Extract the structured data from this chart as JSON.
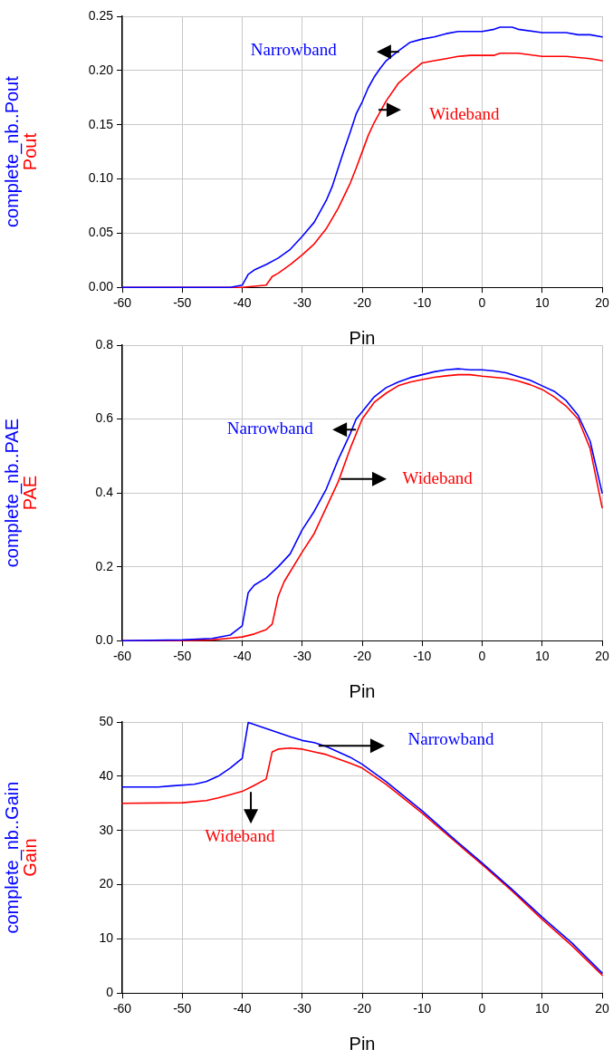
{
  "chart_data": [
    {
      "type": "line",
      "xlabel": "Pin",
      "ylabel": "complete_nb..Pout\nPout",
      "xlim": [
        -60,
        20
      ],
      "xticks": [
        -60,
        -50,
        -40,
        -30,
        -20,
        -10,
        0,
        10,
        20
      ],
      "ylim": [
        0,
        0.25
      ],
      "yticks": [
        {
          "value": 0,
          "label": "0.00"
        },
        {
          "value": 0.05,
          "label": "0.05"
        },
        {
          "value": 0.1,
          "label": "0.10"
        },
        {
          "value": 0.15,
          "label": "0.15"
        },
        {
          "value": 0.2,
          "label": "0.20"
        },
        {
          "value": 0.25,
          "label": "0.25"
        }
      ],
      "grid": true,
      "legend": false,
      "marker": "none",
      "series": [
        {
          "name": "Narrowband",
          "color": "#0000ff",
          "x": [
            -60,
            -42,
            -41,
            -40,
            -39,
            -38,
            -36,
            -34,
            -32,
            -30,
            -28,
            -26,
            -25,
            -24,
            -23,
            -22,
            -21,
            -20,
            -19,
            -18,
            -17,
            -16,
            -14,
            -12,
            -10,
            -8,
            -6,
            -4,
            -2,
            0,
            2,
            3,
            5,
            6,
            10,
            14,
            16,
            18,
            20
          ],
          "values": [
            0,
            0,
            0.001,
            0.002,
            0.012,
            0.016,
            0.021,
            0.027,
            0.035,
            0.047,
            0.06,
            0.08,
            0.093,
            0.11,
            0.127,
            0.143,
            0.16,
            0.171,
            0.184,
            0.194,
            0.202,
            0.209,
            0.218,
            0.226,
            0.229,
            0.231,
            0.234,
            0.236,
            0.236,
            0.236,
            0.238,
            0.24,
            0.24,
            0.238,
            0.235,
            0.235,
            0.233,
            0.233,
            0.231
          ]
        },
        {
          "name": "Wideband",
          "color": "#ff0000",
          "x": [
            -60,
            -40,
            -38,
            -36,
            -35,
            -34,
            -32,
            -30,
            -28,
            -26,
            -24,
            -22,
            -21,
            -20,
            -19,
            -18,
            -16,
            -14,
            -12,
            -10,
            -8,
            -6,
            -4,
            -2,
            0,
            2,
            3,
            6,
            10,
            14,
            18,
            20
          ],
          "values": [
            0,
            0,
            0.001,
            0.002,
            0.01,
            0.013,
            0.021,
            0.03,
            0.04,
            0.054,
            0.073,
            0.096,
            0.11,
            0.125,
            0.14,
            0.152,
            0.172,
            0.188,
            0.198,
            0.207,
            0.209,
            0.211,
            0.213,
            0.214,
            0.214,
            0.214,
            0.216,
            0.216,
            0.213,
            0.213,
            0.211,
            0.209
          ]
        }
      ]
    },
    {
      "type": "line",
      "xlabel": "Pin",
      "ylabel": "complete_nb..PAE\nPAE",
      "xlim": [
        -60,
        20
      ],
      "xticks": [
        -60,
        -50,
        -40,
        -30,
        -20,
        -10,
        0,
        10,
        20
      ],
      "ylim": [
        0,
        0.8
      ],
      "yticks": [
        {
          "value": 0,
          "label": "0.0"
        },
        {
          "value": 0.2,
          "label": "0.2"
        },
        {
          "value": 0.4,
          "label": "0.4"
        },
        {
          "value": 0.6,
          "label": "0.6"
        },
        {
          "value": 0.8,
          "label": "0.8"
        }
      ],
      "grid": true,
      "legend": false,
      "marker": "none",
      "series": [
        {
          "name": "Narrowband",
          "color": "#0000ff",
          "x": [
            -60,
            -50,
            -45,
            -42,
            -40,
            -39,
            -38,
            -36,
            -34,
            -32,
            -30,
            -28,
            -26,
            -24,
            -22,
            -21,
            -20,
            -18,
            -16,
            -14,
            -12,
            -10,
            -8,
            -6,
            -4,
            -2,
            0,
            2,
            4,
            6,
            8,
            10,
            12,
            14,
            16,
            18,
            20
          ],
          "values": [
            0,
            0.002,
            0.006,
            0.015,
            0.04,
            0.13,
            0.15,
            0.17,
            0.2,
            0.235,
            0.3,
            0.35,
            0.41,
            0.49,
            0.56,
            0.6,
            0.62,
            0.66,
            0.685,
            0.7,
            0.712,
            0.72,
            0.728,
            0.733,
            0.736,
            0.733,
            0.733,
            0.73,
            0.725,
            0.715,
            0.705,
            0.69,
            0.675,
            0.65,
            0.61,
            0.54,
            0.4
          ]
        },
        {
          "name": "Wideband",
          "color": "#ff0000",
          "x": [
            -60,
            -50,
            -45,
            -40,
            -38,
            -36,
            -35,
            -34,
            -33,
            -30,
            -28,
            -26,
            -24,
            -22,
            -20,
            -18,
            -16,
            -14,
            -12,
            -10,
            -8,
            -6,
            -4,
            -2,
            0,
            2,
            4,
            6,
            8,
            10,
            12,
            14,
            16,
            18,
            20
          ],
          "values": [
            0,
            0,
            0.002,
            0.01,
            0.018,
            0.03,
            0.045,
            0.12,
            0.16,
            0.24,
            0.29,
            0.36,
            0.43,
            0.52,
            0.6,
            0.645,
            0.67,
            0.69,
            0.7,
            0.707,
            0.713,
            0.717,
            0.72,
            0.72,
            0.716,
            0.713,
            0.71,
            0.703,
            0.693,
            0.68,
            0.66,
            0.635,
            0.6,
            0.52,
            0.36
          ]
        }
      ]
    },
    {
      "type": "line",
      "xlabel": "Pin",
      "ylabel": "complete_nb..Gain\nGain",
      "xlim": [
        -60,
        20
      ],
      "xticks": [
        -60,
        -50,
        -40,
        -30,
        -20,
        -10,
        0,
        10,
        20
      ],
      "ylim": [
        0,
        50
      ],
      "yticks": [
        0,
        10,
        20,
        30,
        40,
        50
      ],
      "grid": true,
      "legend": false,
      "marker": "none",
      "series": [
        {
          "name": "Narrowband",
          "color": "#0000ff",
          "x": [
            -60,
            -54,
            -52,
            -48,
            -46,
            -44,
            -42,
            -40,
            -39,
            -36,
            -32,
            -30,
            -28,
            -26,
            -24,
            -22,
            -20,
            -16,
            -10,
            -5,
            0,
            5,
            10,
            15,
            20
          ],
          "values": [
            38,
            38,
            38.2,
            38.5,
            39,
            40,
            41.5,
            43.3,
            49.9,
            48.8,
            47.3,
            46.6,
            46.2,
            45.5,
            44.5,
            43.5,
            42.2,
            39,
            33.6,
            28.7,
            24,
            19.1,
            14,
            9.2,
            3.7
          ]
        },
        {
          "name": "Wideband",
          "color": "#ff0000",
          "x": [
            -60,
            -50,
            -46,
            -44,
            -42,
            -40,
            -38,
            -36,
            -35,
            -34,
            -32,
            -30,
            -28,
            -26,
            -24,
            -22,
            -20,
            -16,
            -10,
            -5,
            0,
            5,
            10,
            15,
            20
          ],
          "values": [
            35,
            35.1,
            35.5,
            36,
            36.6,
            37.2,
            38.3,
            39.5,
            44.5,
            45,
            45.2,
            45,
            44.5,
            44,
            43.2,
            42.4,
            41.5,
            38.5,
            33.2,
            28.4,
            23.7,
            18.8,
            13.6,
            8.7,
            3.3
          ]
        }
      ]
    }
  ]
}
